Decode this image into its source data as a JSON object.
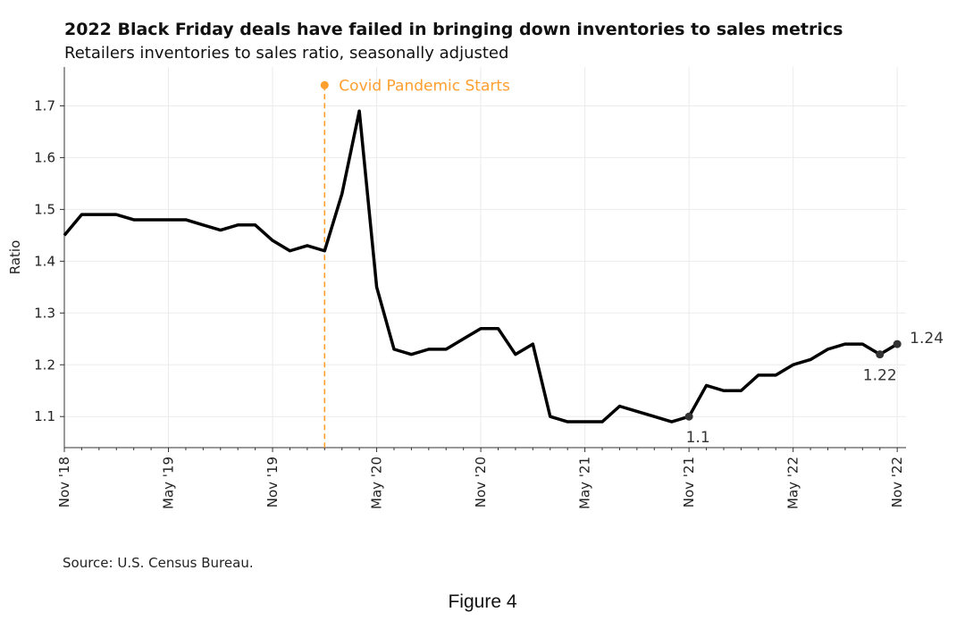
{
  "chart_data": {
    "type": "line",
    "title": "2022 Black Friday deals have failed in bringing down inventories to sales metrics",
    "subtitle": "Retailers inventories to sales ratio, seasonally adjusted",
    "xlabel": "",
    "ylabel": "Ratio",
    "x": [
      "Nov '18",
      "Dec '18",
      "Jan '19",
      "Feb '19",
      "Mar '19",
      "Apr '19",
      "May '19",
      "Jun '19",
      "Jul '19",
      "Aug '19",
      "Sep '19",
      "Oct '19",
      "Nov '19",
      "Dec '19",
      "Jan '20",
      "Feb '20",
      "Mar '20",
      "Apr '20",
      "May '20",
      "Jun '20",
      "Jul '20",
      "Aug '20",
      "Sep '20",
      "Oct '20",
      "Nov '20",
      "Dec '20",
      "Jan '21",
      "Feb '21",
      "Mar '21",
      "Apr '21",
      "May '21",
      "Jun '21",
      "Jul '21",
      "Aug '21",
      "Sep '21",
      "Oct '21",
      "Nov '21",
      "Dec '21",
      "Jan '22",
      "Feb '22",
      "Mar '22",
      "Apr '22",
      "May '22",
      "Jun '22",
      "Jul '22",
      "Aug '22",
      "Sep '22",
      "Oct '22",
      "Nov '22"
    ],
    "values": [
      1.45,
      1.49,
      1.49,
      1.49,
      1.48,
      1.48,
      1.48,
      1.48,
      1.47,
      1.46,
      1.47,
      1.47,
      1.44,
      1.42,
      1.43,
      1.42,
      1.53,
      1.69,
      1.35,
      1.23,
      1.22,
      1.23,
      1.23,
      1.25,
      1.27,
      1.27,
      1.22,
      1.24,
      1.1,
      1.09,
      1.09,
      1.09,
      1.12,
      1.11,
      1.1,
      1.09,
      1.1,
      1.16,
      1.15,
      1.15,
      1.18,
      1.18,
      1.2,
      1.21,
      1.23,
      1.24,
      1.24,
      1.22,
      1.24
    ],
    "xticks": [
      "Nov '18",
      "May '19",
      "Nov '19",
      "May '20",
      "Nov '20",
      "May '21",
      "Nov '21",
      "May '22",
      "Nov '22"
    ],
    "yticks": [
      1.1,
      1.2,
      1.3,
      1.4,
      1.5,
      1.6,
      1.7
    ],
    "ylim": [
      1.04,
      1.775
    ],
    "grid": true,
    "line_color": "#000000",
    "annotations": [
      {
        "x": "Nov '21",
        "y": 1.1,
        "text": "1.1"
      },
      {
        "x": "Oct '22",
        "y": 1.22,
        "text": "1.22"
      },
      {
        "x": "Nov '22",
        "y": 1.24,
        "text": "1.24"
      }
    ],
    "event": {
      "x": "Feb '20",
      "y": 1.74,
      "text": "Covid Pandemic Starts",
      "color": "#ff9f2e"
    }
  },
  "source": "Source: U.S. Census Bureau.",
  "figure_caption": "Figure 4"
}
